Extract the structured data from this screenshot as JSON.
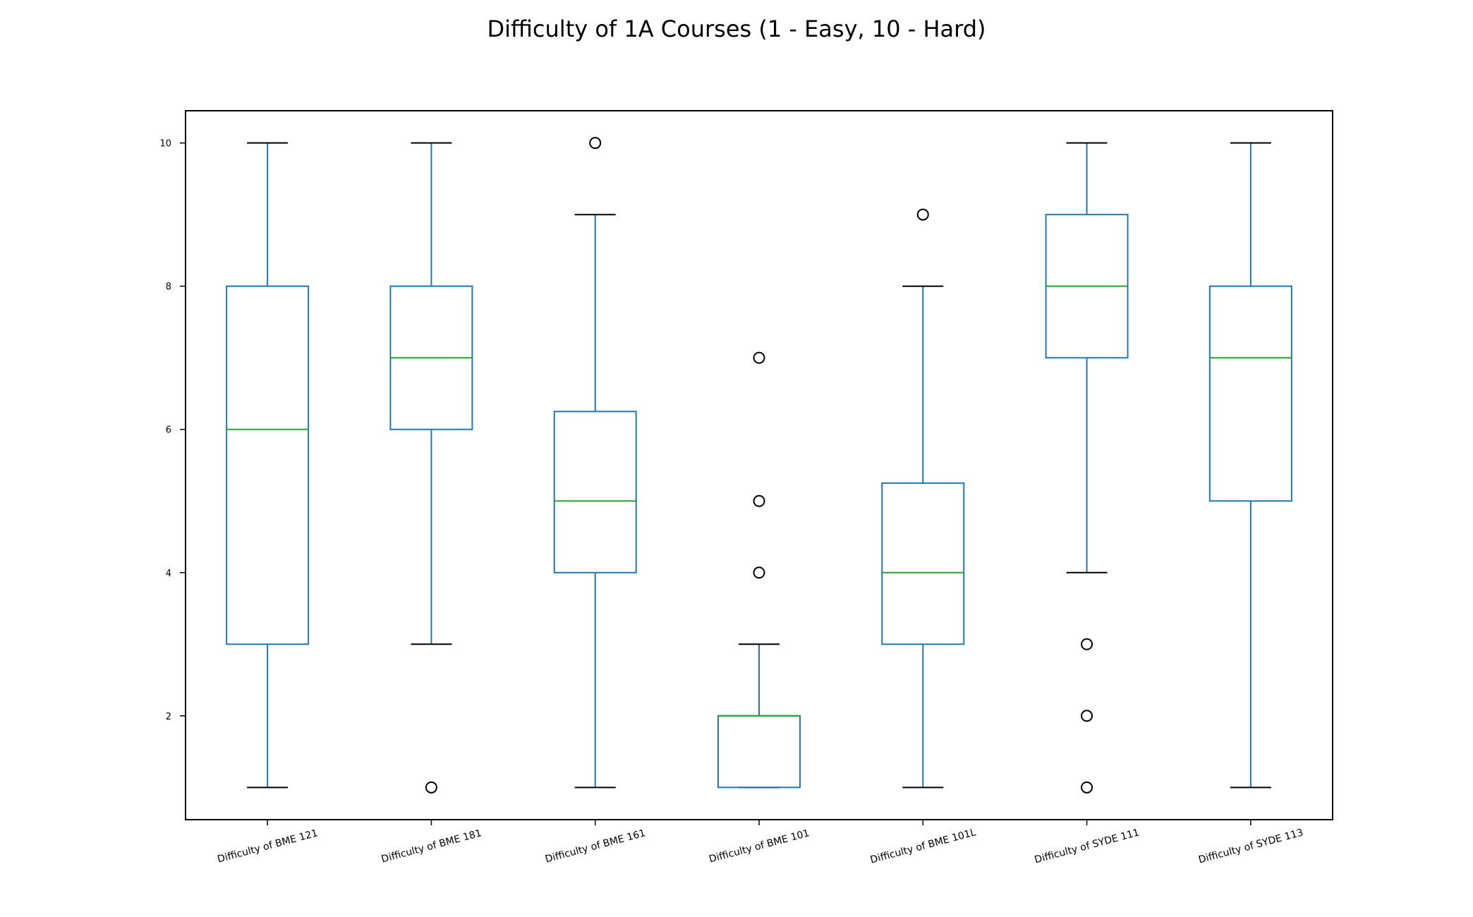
{
  "chart_data": {
    "type": "box",
    "title": "Difficulty of 1A Courses (1 - Easy, 10 - Hard)",
    "xlabel": "",
    "ylabel": "",
    "ylim": [
      0.55,
      10.45
    ],
    "yticks": [
      2,
      4,
      6,
      8,
      10
    ],
    "grid": false,
    "colors": {
      "box": "#1f77b4",
      "median": "#2ca02c",
      "cap": "#000000",
      "flier": "#000000"
    },
    "categories": [
      "Difficulty of BME 121",
      "Difficulty of BME 181",
      "Difficulty of BME 161",
      "Difficulty of BME 101",
      "Difficulty of BME 101L",
      "Difficulty of SYDE 111",
      "Difficulty of SYDE 113"
    ],
    "boxes": [
      {
        "name": "Difficulty of BME 121",
        "whisker_low": 1,
        "q1": 3,
        "median": 6,
        "q3": 8,
        "whisker_high": 10,
        "outliers": []
      },
      {
        "name": "Difficulty of BME 181",
        "whisker_low": 3,
        "q1": 6,
        "median": 7,
        "q3": 8,
        "whisker_high": 10,
        "outliers": [
          1
        ]
      },
      {
        "name": "Difficulty of BME 161",
        "whisker_low": 1,
        "q1": 4,
        "median": 5,
        "q3": 6.25,
        "whisker_high": 9,
        "outliers": [
          10
        ]
      },
      {
        "name": "Difficulty of BME 101",
        "whisker_low": 1,
        "q1": 1,
        "median": 2,
        "q3": 2,
        "whisker_high": 3,
        "outliers": [
          4,
          5,
          7
        ]
      },
      {
        "name": "Difficulty of BME 101L",
        "whisker_low": 1,
        "q1": 3,
        "median": 4,
        "q3": 5.25,
        "whisker_high": 8,
        "outliers": [
          9
        ]
      },
      {
        "name": "Difficulty of SYDE 111",
        "whisker_low": 4,
        "q1": 7,
        "median": 8,
        "q3": 9,
        "whisker_high": 10,
        "outliers": [
          1,
          2,
          3
        ]
      },
      {
        "name": "Difficulty of SYDE 113",
        "whisker_low": 1,
        "q1": 5,
        "median": 7,
        "q3": 8,
        "whisker_high": 10,
        "outliers": []
      }
    ]
  }
}
